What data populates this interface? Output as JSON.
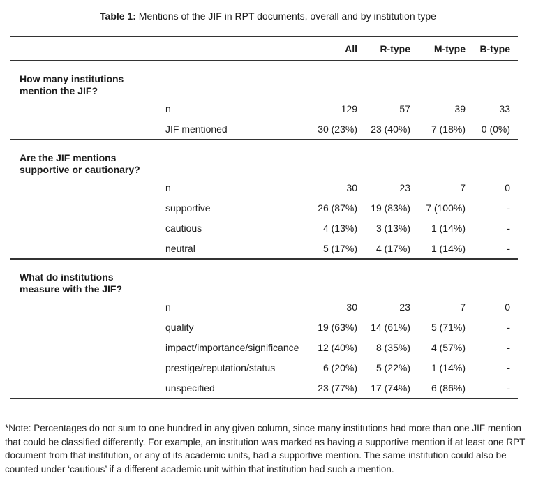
{
  "title": {
    "label": "Table 1:",
    "text": "Mentions of the JIF in RPT documents, overall and by institution type"
  },
  "table": {
    "columns": [
      "All",
      "R-type",
      "M-type",
      "B-type"
    ],
    "sections": [
      {
        "question": [
          "How many institutions",
          "mention the JIF?"
        ],
        "rows": [
          {
            "label": "n",
            "values": [
              "129",
              "57",
              "39",
              "33"
            ]
          },
          {
            "label": "JIF mentioned",
            "values": [
              "30 (23%)",
              "23 (40%)",
              "7 (18%)",
              "0 (0%)"
            ]
          }
        ]
      },
      {
        "question": [
          "Are the JIF mentions",
          "supportive or cautionary?"
        ],
        "rows": [
          {
            "label": "n",
            "values": [
              "30",
              "23",
              "7",
              "0"
            ]
          },
          {
            "label": "supportive",
            "values": [
              "26 (87%)",
              "19 (83%)",
              "7 (100%)",
              "-"
            ]
          },
          {
            "label": "cautious",
            "values": [
              "4 (13%)",
              "3 (13%)",
              "1 (14%)",
              "-"
            ]
          },
          {
            "label": "neutral",
            "values": [
              "5 (17%)",
              "4 (17%)",
              "1 (14%)",
              "-"
            ]
          }
        ]
      },
      {
        "question": [
          "What do institutions",
          "measure with the JIF?"
        ],
        "rows": [
          {
            "label": "n",
            "values": [
              "30",
              "23",
              "7",
              "0"
            ]
          },
          {
            "label": "quality",
            "values": [
              "19 (63%)",
              "14 (61%)",
              "5 (71%)",
              "-"
            ]
          },
          {
            "label": "impact/importance/significance",
            "values": [
              "12 (40%)",
              "8 (35%)",
              "4 (57%)",
              "-"
            ]
          },
          {
            "label": "prestige/reputation/status",
            "values": [
              "6 (20%)",
              "5 (22%)",
              "1 (14%)",
              "-"
            ]
          },
          {
            "label": "unspecified",
            "values": [
              "23 (77%)",
              "17 (74%)",
              "6 (86%)",
              "-"
            ]
          }
        ]
      }
    ]
  },
  "note": "*Note: Percentages do not sum to one hundred in any given column, since many institutions had more than one JIF mention that could be classified differently. For example, an institution was marked as having a supportive mention if at least one RPT document from that institution, or any of its academic units, had a supportive mention. The same institution could also be counted under ‘cautious’ if a different academic unit within that institution had such a mention."
}
